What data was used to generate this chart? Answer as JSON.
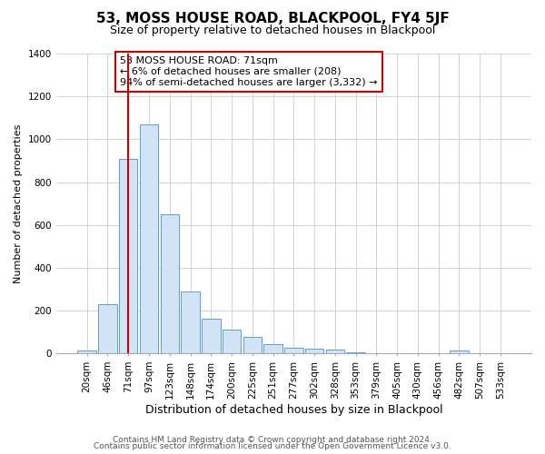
{
  "title": "53, MOSS HOUSE ROAD, BLACKPOOL, FY4 5JF",
  "subtitle": "Size of property relative to detached houses in Blackpool",
  "xlabel": "Distribution of detached houses by size in Blackpool",
  "ylabel": "Number of detached properties",
  "categories": [
    "20sqm",
    "46sqm",
    "71sqm",
    "97sqm",
    "123sqm",
    "148sqm",
    "174sqm",
    "200sqm",
    "225sqm",
    "251sqm",
    "277sqm",
    "302sqm",
    "328sqm",
    "353sqm",
    "379sqm",
    "405sqm",
    "430sqm",
    "456sqm",
    "482sqm",
    "507sqm",
    "533sqm"
  ],
  "values": [
    15,
    230,
    910,
    1070,
    650,
    290,
    160,
    110,
    75,
    43,
    25,
    20,
    18,
    3,
    2,
    1,
    1,
    1,
    14,
    1,
    1
  ],
  "bar_fill_color": "#d0e4f5",
  "bar_edge_color": "#5a9fd4",
  "vline_index": 2,
  "vline_color": "#cc0000",
  "annotation_text": "53 MOSS HOUSE ROAD: 71sqm\n← 6% of detached houses are smaller (208)\n94% of semi-detached houses are larger (3,332) →",
  "annotation_box_facecolor": "#ffffff",
  "annotation_box_edgecolor": "#cc0000",
  "ylim": [
    0,
    1400
  ],
  "yticks": [
    0,
    200,
    400,
    600,
    800,
    1000,
    1200,
    1400
  ],
  "background_color": "#ffffff",
  "plot_bg_color": "#ffffff",
  "grid_color": "#cccccc",
  "footer_line1": "Contains HM Land Registry data © Crown copyright and database right 2024.",
  "footer_line2": "Contains public sector information licensed under the Open Government Licence v3.0.",
  "title_fontsize": 11,
  "subtitle_fontsize": 9,
  "ylabel_fontsize": 8,
  "xlabel_fontsize": 9,
  "tick_fontsize": 7.5,
  "footer_fontsize": 6.5
}
